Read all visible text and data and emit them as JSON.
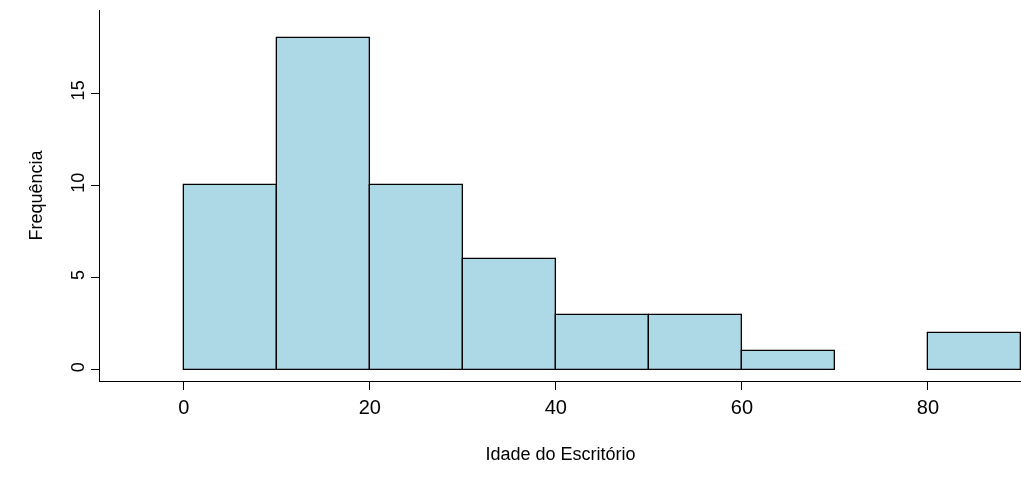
{
  "chart_data": {
    "type": "histogram",
    "xlabel": "Idade do Escritório",
    "ylabel": "Frequência",
    "bins": [
      0,
      10,
      20,
      30,
      40,
      50,
      60,
      70,
      80,
      90
    ],
    "values": [
      10,
      18,
      10,
      6,
      3,
      3,
      1,
      0,
      2
    ],
    "color": "#add8e6",
    "xlim": [
      -9,
      90
    ],
    "xticks": [
      0,
      20,
      40,
      60,
      80
    ],
    "ylim": [
      -0.6,
      19.5
    ],
    "yticks": [
      0,
      5,
      10,
      15
    ]
  }
}
